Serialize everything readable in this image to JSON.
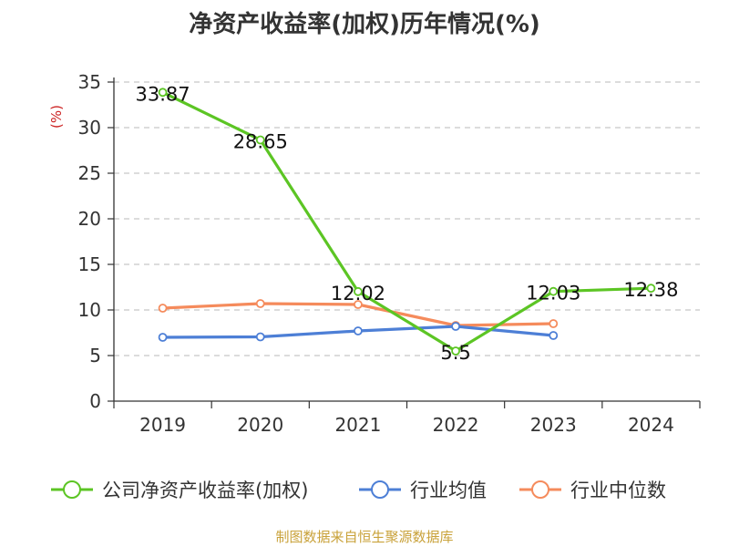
{
  "title": "净资产收益率(加权)历年情况(%)",
  "source": "制图数据来自恒生聚源数据库",
  "colors": {
    "roe": "#5cc524",
    "industry_avg": "#4d7fd6",
    "industry_median": "#f58b5c",
    "unit": "#cc2222",
    "grid": "#c8c8c8",
    "axis": "#333333"
  },
  "chart_data": {
    "type": "line",
    "title": "净资产收益率(加权)历年情况(%)",
    "ylabel": "(%)",
    "xlabel": "",
    "categories": [
      "2019",
      "2020",
      "2021",
      "2022",
      "2023",
      "2024"
    ],
    "ylim": [
      0,
      35
    ],
    "yticks": [
      0,
      5,
      10,
      15,
      20,
      25,
      30,
      35
    ],
    "grid": "horizontal dashed",
    "legend_position": "bottom",
    "series": [
      {
        "name": "公司净资产收益率(加权)",
        "color": "#5cc524",
        "values": [
          33.87,
          28.65,
          12.02,
          5.5,
          12.03,
          12.38
        ],
        "labels": [
          "33.87",
          "28.65",
          "12.02",
          "5.5",
          "12.03",
          "12.38"
        ]
      },
      {
        "name": "行业均值",
        "color": "#4d7fd6",
        "values": [
          7.0,
          7.05,
          7.7,
          8.2,
          7.2,
          null
        ]
      },
      {
        "name": "行业中位数",
        "color": "#f58b5c",
        "values": [
          10.2,
          10.7,
          10.6,
          8.3,
          8.5,
          null
        ]
      }
    ]
  }
}
